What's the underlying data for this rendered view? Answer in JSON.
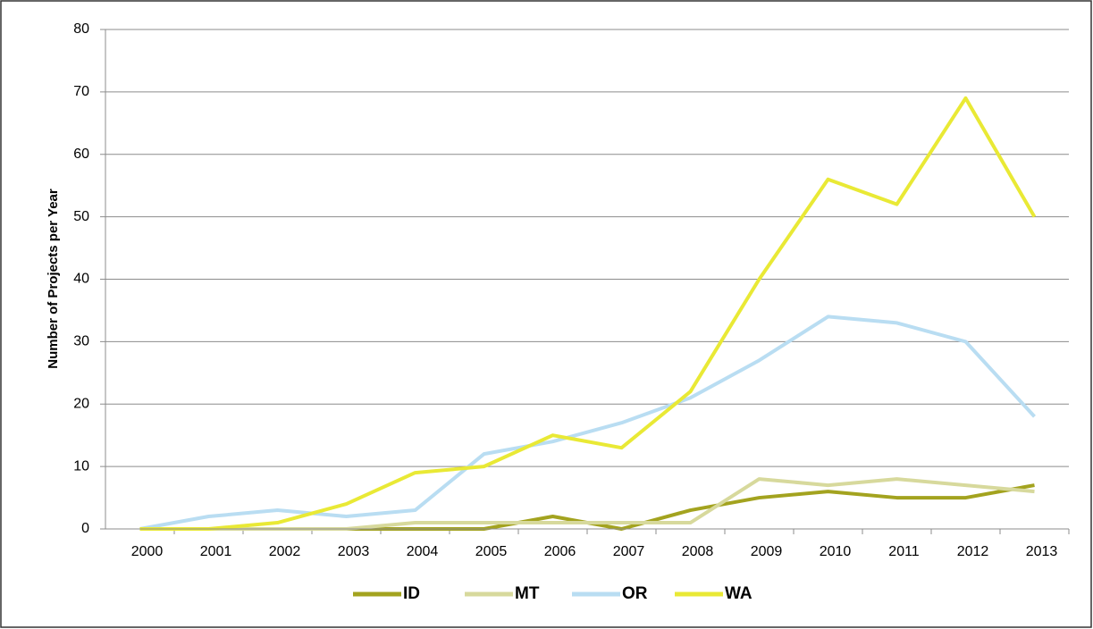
{
  "chart_data": {
    "type": "line",
    "y_label": "Number of Projects per Year",
    "categories": [
      "2000",
      "2001",
      "2002",
      "2003",
      "2004",
      "2005",
      "2006",
      "2007",
      "2008",
      "2009",
      "2010",
      "2011",
      "2012",
      "2013"
    ],
    "series": [
      {
        "name": "ID",
        "color": "#a3a31f",
        "values": [
          0,
          0,
          0,
          0,
          0,
          0,
          2,
          0,
          3,
          5,
          6,
          5,
          5,
          7
        ]
      },
      {
        "name": "MT",
        "color": "#d7d99c",
        "values": [
          0,
          0,
          0,
          0,
          1,
          1,
          1,
          1,
          1,
          8,
          7,
          8,
          7,
          6
        ]
      },
      {
        "name": "OR",
        "color": "#b9ddf2",
        "values": [
          0,
          2,
          3,
          2,
          3,
          12,
          14,
          17,
          21,
          27,
          34,
          33,
          30,
          18
        ]
      },
      {
        "name": "WA",
        "color": "#e9e935",
        "values": [
          0,
          0,
          1,
          4,
          9,
          10,
          15,
          13,
          22,
          40,
          56,
          52,
          69,
          50
        ]
      }
    ],
    "ylim": [
      0,
      80
    ],
    "yticks": [
      0,
      10,
      20,
      30,
      40,
      50,
      60,
      70,
      80
    ],
    "grid": true,
    "legend": "bottom"
  }
}
